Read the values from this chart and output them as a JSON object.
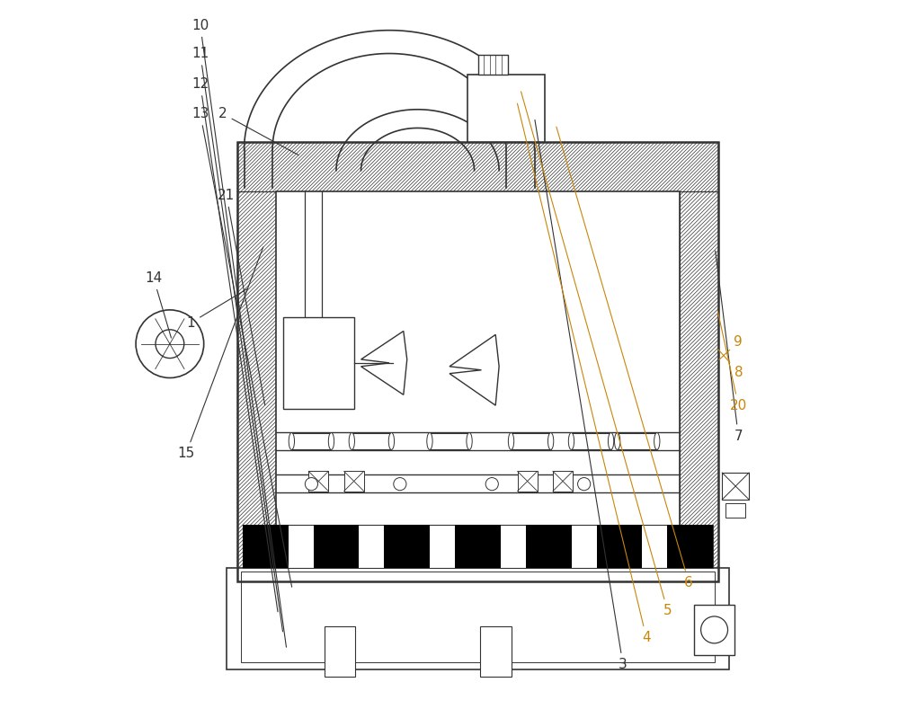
{
  "bg_color": "#ffffff",
  "line_color": "#333333",
  "label_color_main": "#333333",
  "label_color_alt": "#c8860a",
  "figsize": [
    10.0,
    7.89
  ],
  "dpi": 100
}
